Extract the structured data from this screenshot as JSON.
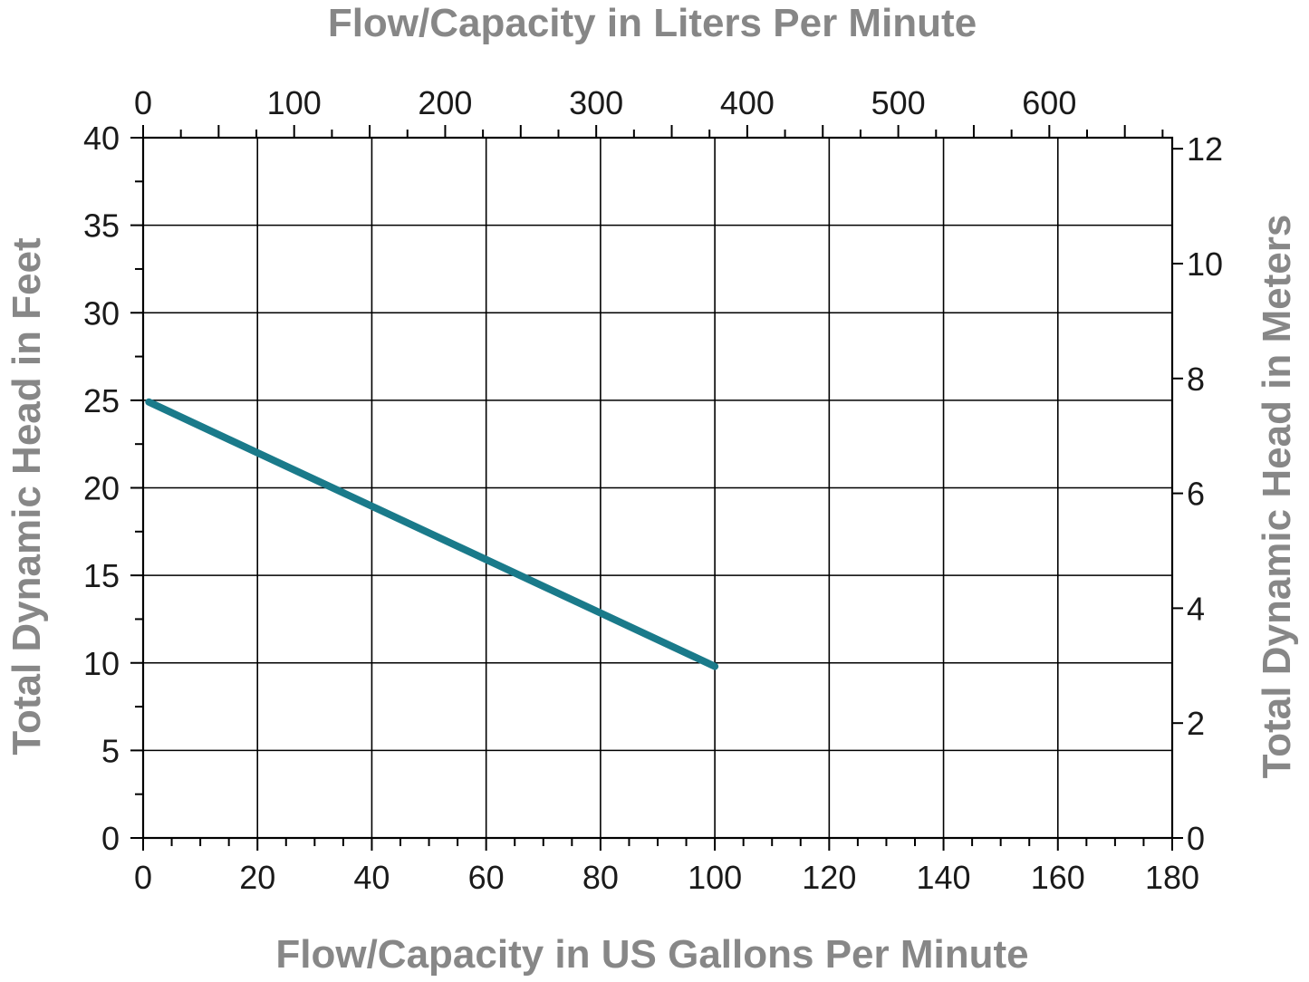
{
  "chart_data": {
    "type": "line",
    "xlabel": "Flow/Capacity in US Gallons Per Minute",
    "x2label": "Flow/Capacity in Liters Per Minute",
    "ylabel": "Total Dynamic Head in Feet",
    "y2label": "Total Dynamic Head in Meters",
    "xlim": [
      0,
      180
    ],
    "ylim": [
      0,
      40
    ],
    "x2_ticks": [
      0,
      100,
      200,
      300,
      400,
      500,
      600
    ],
    "x_ticks": [
      0,
      20,
      40,
      60,
      80,
      100,
      120,
      140,
      160,
      180
    ],
    "y_ticks": [
      0,
      5,
      10,
      15,
      20,
      25,
      30,
      35,
      40
    ],
    "y2_ticks": [
      0,
      2,
      4,
      6,
      8,
      10,
      12
    ],
    "grid": true,
    "series": [
      {
        "color": "#1a7a8a",
        "x": [
          1,
          100
        ],
        "y": [
          24.9,
          9.8
        ]
      }
    ]
  }
}
